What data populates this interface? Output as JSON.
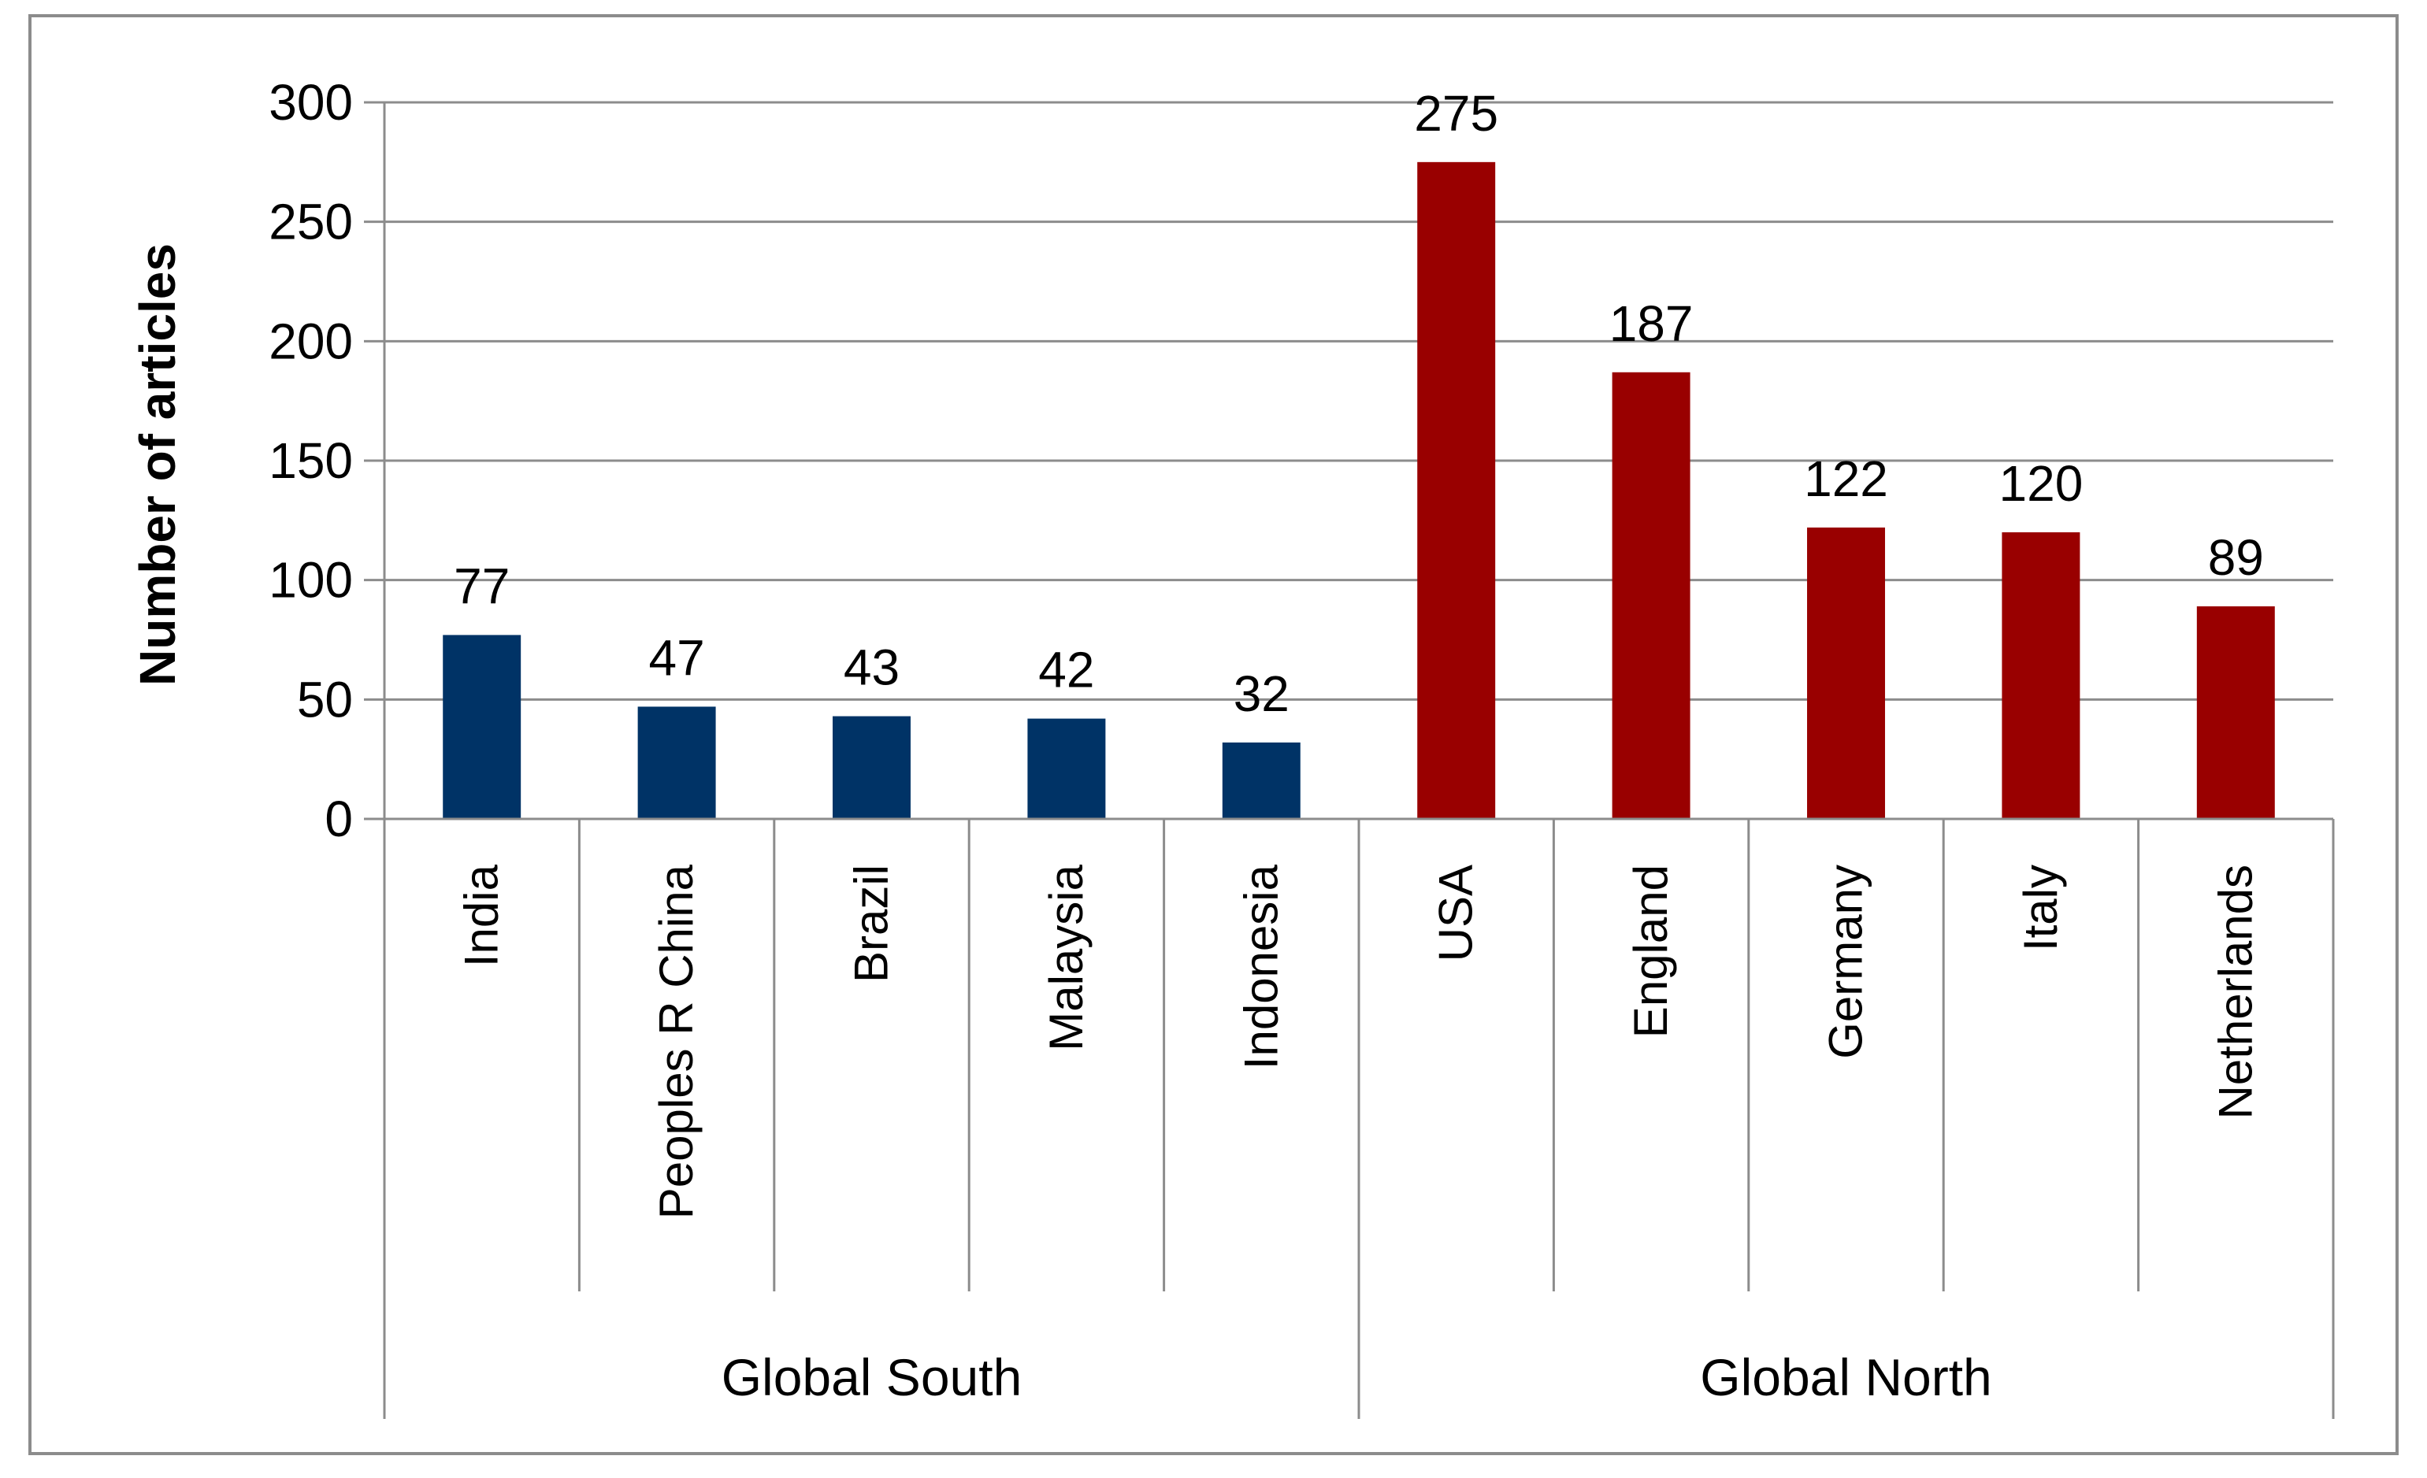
{
  "chart_data": {
    "type": "bar",
    "title": "",
    "ylabel": "Number of articles",
    "xlabel": "",
    "ylim": [
      0,
      300
    ],
    "yticks": [
      0,
      50,
      100,
      150,
      200,
      250,
      300
    ],
    "grid": true,
    "groups": [
      {
        "name": "Global South",
        "color": "#003366",
        "categories": [
          "India",
          "Peoples R China",
          "Brazil",
          "Malaysia",
          "Indonesia"
        ],
        "values": [
          77,
          47,
          43,
          42,
          32
        ]
      },
      {
        "name": "Global North",
        "color": "#990000",
        "categories": [
          "USA",
          "England",
          "Germany",
          "Italy",
          "Netherlands"
        ],
        "values": [
          275,
          187,
          122,
          120,
          89
        ]
      }
    ],
    "categories": [
      "India",
      "Peoples R China",
      "Brazil",
      "Malaysia",
      "Indonesia",
      "USA",
      "England",
      "Germany",
      "Italy",
      "Netherlands"
    ],
    "values": [
      77,
      47,
      43,
      42,
      32,
      275,
      187,
      122,
      120,
      89
    ],
    "data_labels": true
  }
}
